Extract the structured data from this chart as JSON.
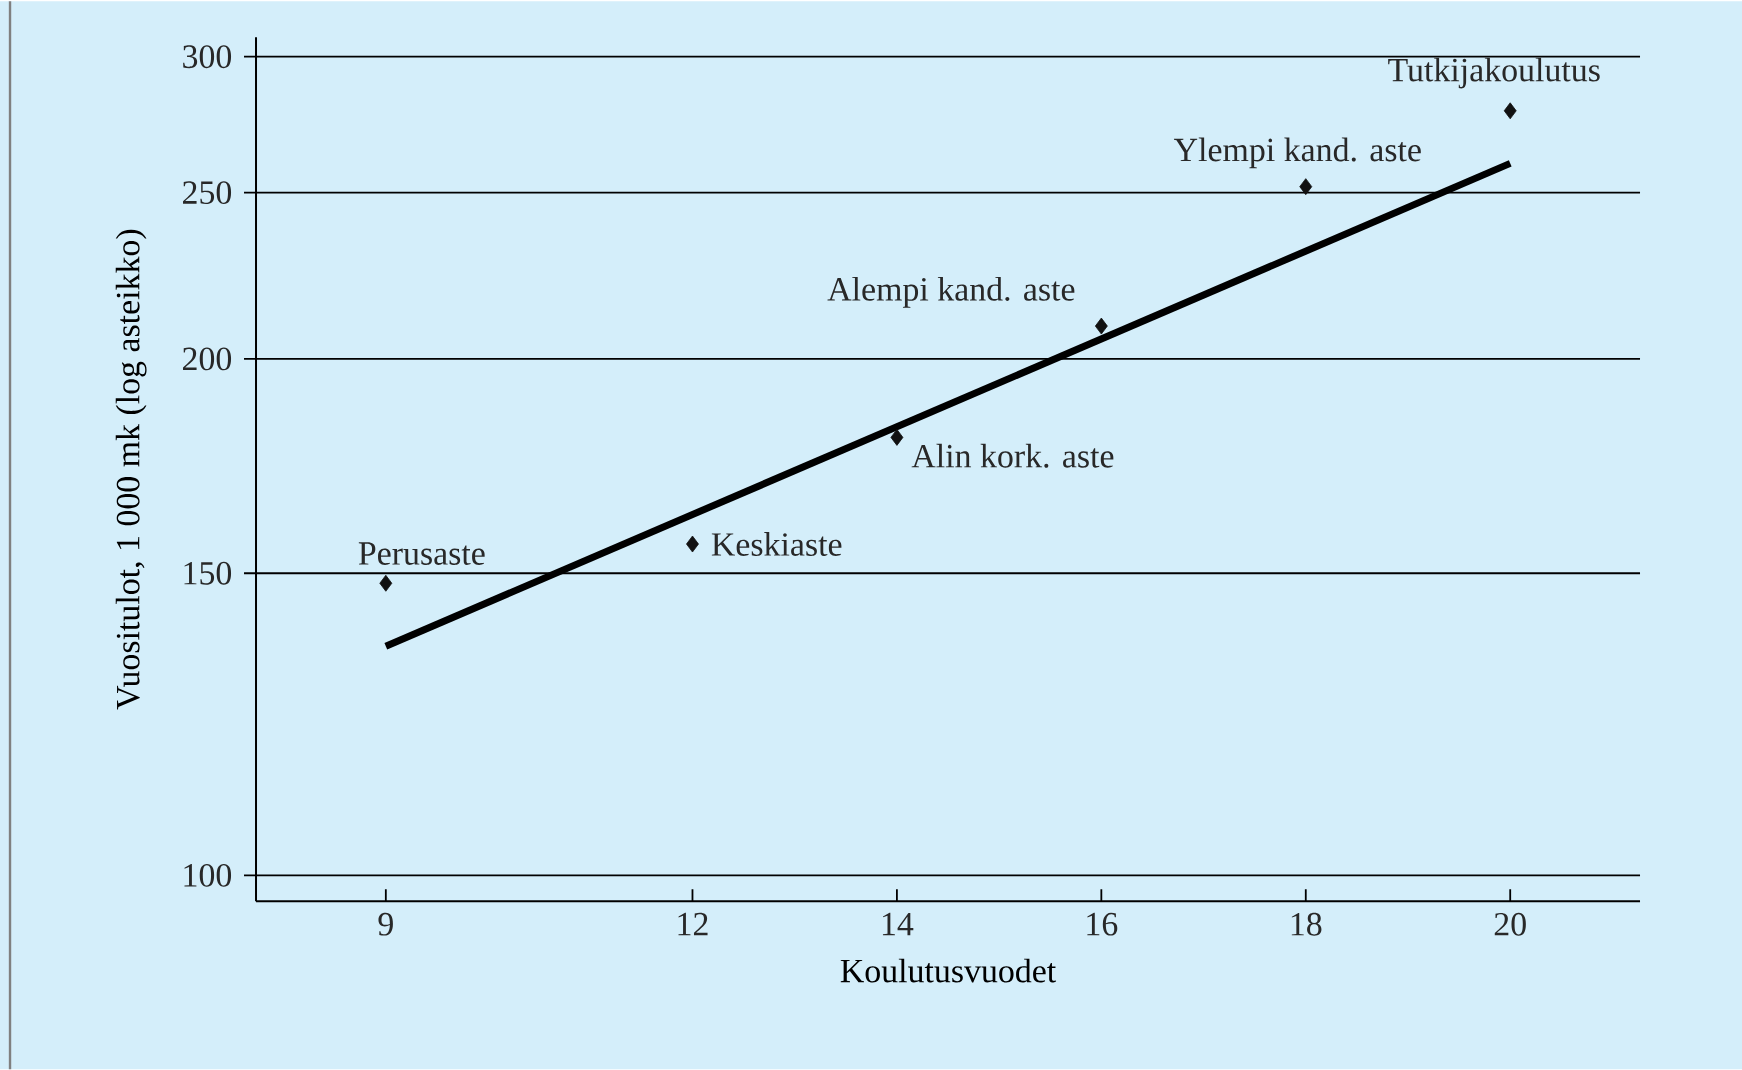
{
  "chart_data": {
    "type": "scatter",
    "xlabel": "Koulutusvuodet",
    "ylabel": "Vuositulot, 1 000 mk (log asteikko)",
    "series": [
      {
        "marker": "diamond",
        "color": "#111111",
        "x": [
          9,
          12,
          14,
          16,
          18,
          20
        ],
        "values": [
          148,
          156,
          180,
          209,
          252,
          279
        ]
      },
      {
        "type": "line",
        "color": "#000000",
        "x": [
          9,
          20
        ],
        "values": [
          136,
          260
        ]
      }
    ],
    "annotations": [
      {
        "text": "Perusaste",
        "x": 9,
        "y": 148
      },
      {
        "text": "Keskiaste",
        "x": 12,
        "y": 156
      },
      {
        "text": "Alin kork. aste",
        "x": 14,
        "y": 180
      },
      {
        "text": "Alempi kand. aste",
        "x": 16,
        "y": 209
      },
      {
        "text": "Ylempi kand. aste",
        "x": 18,
        "y": 252
      },
      {
        "text": "Tutkijakoulutus",
        "x": 20,
        "y": 279
      }
    ],
    "log": "y",
    "grid": "y",
    "line_style": "solid",
    "xlim": [
      7.73,
      21.27
    ],
    "ylim": [
      96.6,
      308
    ],
    "xticks": [
      9,
      12,
      14,
      16,
      18,
      20
    ],
    "yticks": [
      100,
      150,
      200,
      250,
      300
    ]
  }
}
